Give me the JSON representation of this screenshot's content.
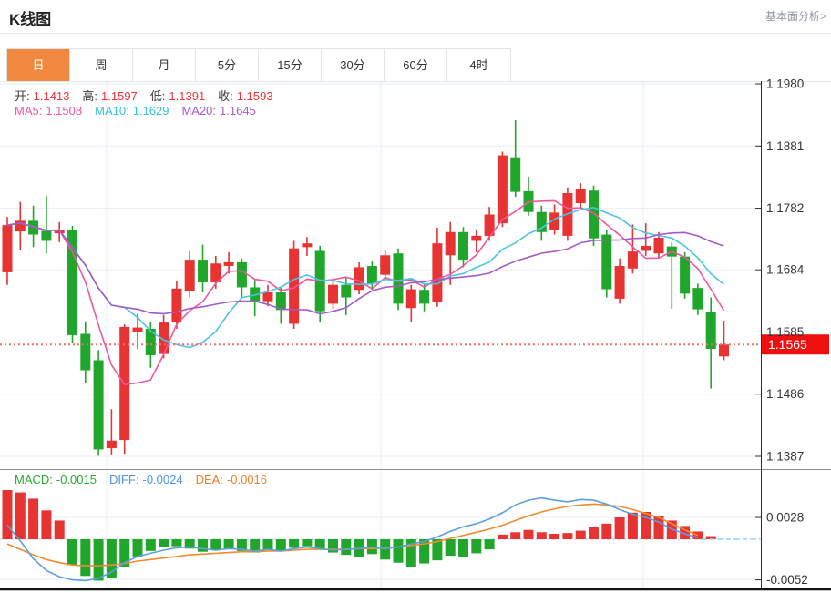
{
  "page": {
    "title": "K线图",
    "link": "基本面分析>"
  },
  "tabs": {
    "items": [
      {
        "name": "day",
        "label": "日",
        "active": true
      },
      {
        "name": "week",
        "label": "周",
        "active": false
      },
      {
        "name": "month",
        "label": "月",
        "active": false
      },
      {
        "name": "min5",
        "label": "5分",
        "active": false
      },
      {
        "name": "min15",
        "label": "15分",
        "active": false
      },
      {
        "name": "min30",
        "label": "30分",
        "active": false
      },
      {
        "name": "min60",
        "label": "60分",
        "active": false
      },
      {
        "name": "hour4",
        "label": "4时",
        "active": false
      }
    ]
  },
  "readout": {
    "ohlc": [
      {
        "name": "open",
        "label": "开:",
        "value": "1.1413"
      },
      {
        "name": "high",
        "label": "高:",
        "value": "1.1597"
      },
      {
        "name": "low",
        "label": "低:",
        "value": "1.1391"
      },
      {
        "name": "close",
        "label": "收:",
        "value": "1.1593"
      }
    ],
    "ma": [
      {
        "name": "ma5",
        "label": "MA5:",
        "value": "1.1508",
        "color": "#f0569e"
      },
      {
        "name": "ma10",
        "label": "MA10:",
        "value": "1.1629",
        "color": "#35c2dc"
      },
      {
        "name": "ma20",
        "label": "MA20:",
        "value": "1.1645",
        "color": "#a55ad2"
      }
    ],
    "macd": [
      {
        "name": "macd",
        "label": "MACD:",
        "value": "-0.0015",
        "color": "#27a830"
      },
      {
        "name": "diff",
        "label": "DIFF:",
        "value": "-0.0024",
        "color": "#4f94e8"
      },
      {
        "name": "dea",
        "label": "DEA:",
        "value": "-0.0016",
        "color": "#f07f28"
      }
    ]
  },
  "price_axis": {
    "labels": [
      "1.1980",
      "1.1881",
      "1.1782",
      "1.1684",
      "1.1585",
      "1.1486",
      "1.1387"
    ],
    "current": "1.1565"
  },
  "macd_axis": {
    "labels": [
      "0.0028",
      "-0.0052"
    ]
  },
  "colors": {
    "up": "#e83333",
    "down": "#21a62c",
    "ma5": "#f0569e",
    "ma10": "#4cc5e0",
    "ma20": "#a45bc8",
    "diff_line": "#5b9fe0",
    "dea_line": "#f28a30",
    "grid": "#e7eef5",
    "vgrid": "#e7eef5",
    "axis": "#2f2f2f",
    "separator": "#8a8f94",
    "bottom_line": "#111111",
    "dotted_price": "#f56c6c",
    "tag_bg": "#ee1010",
    "tag_text": "#ffffff",
    "zero_dash": "#c6d0da",
    "tail_dash": "#8ed7f0",
    "label_text": "#333333",
    "ohlc_label": "#3c3c3c",
    "ohlc_value": "#f03333",
    "tab_active": "#f08840"
  },
  "chart_data": {
    "type": "candlestick+macd",
    "title": "K线图 daily candlestick chart with MACD sub-panel",
    "main_panel": {
      "ylim": [
        1.1387,
        1.198
      ],
      "y_ticks": [
        1.198,
        1.1881,
        1.1782,
        1.1684,
        1.1585,
        1.1486,
        1.1387
      ],
      "current_price": 1.1565,
      "ma_periods": [
        5,
        10,
        20
      ],
      "candles_ohlc": [
        [
          1.168,
          1.1768,
          1.166,
          1.1755
        ],
        [
          1.1745,
          1.1792,
          1.1716,
          1.1762
        ],
        [
          1.1762,
          1.1786,
          1.172,
          1.174
        ],
        [
          1.1746,
          1.1802,
          1.171,
          1.173
        ],
        [
          1.1742,
          1.176,
          1.1728,
          1.1748
        ],
        [
          1.1748,
          1.1754,
          1.1568,
          1.158
        ],
        [
          1.1582,
          1.1602,
          1.1504,
          1.1524
        ],
        [
          1.154,
          1.1556,
          1.1388,
          1.1398
        ],
        [
          1.14,
          1.1462,
          1.139,
          1.1412
        ],
        [
          1.1413,
          1.1597,
          1.1391,
          1.1593
        ],
        [
          1.1585,
          1.1614,
          1.1558,
          1.1592
        ],
        [
          1.159,
          1.16,
          1.1528,
          1.1548
        ],
        [
          1.155,
          1.1612,
          1.1543,
          1.16
        ],
        [
          1.16,
          1.1666,
          1.159,
          1.1654
        ],
        [
          1.165,
          1.1714,
          1.164,
          1.17
        ],
        [
          1.17,
          1.1724,
          1.1648,
          1.1664
        ],
        [
          1.1664,
          1.1706,
          1.1654,
          1.1694
        ],
        [
          1.169,
          1.1712,
          1.1678,
          1.1696
        ],
        [
          1.1696,
          1.1702,
          1.164,
          1.1656
        ],
        [
          1.1656,
          1.1668,
          1.161,
          1.1634
        ],
        [
          1.1634,
          1.166,
          1.1626,
          1.1648
        ],
        [
          1.1648,
          1.1656,
          1.1598,
          1.162
        ],
        [
          1.1598,
          1.173,
          1.159,
          1.1718
        ],
        [
          1.172,
          1.1736,
          1.1706,
          1.1726
        ],
        [
          1.1714,
          1.1722,
          1.16,
          1.1618
        ],
        [
          1.163,
          1.1668,
          1.1622,
          1.166
        ],
        [
          1.166,
          1.1672,
          1.1612,
          1.164
        ],
        [
          1.1652,
          1.1696,
          1.1645,
          1.1688
        ],
        [
          1.169,
          1.1698,
          1.1652,
          1.1662
        ],
        [
          1.1676,
          1.1716,
          1.1668,
          1.1707
        ],
        [
          1.171,
          1.1718,
          1.162,
          1.163
        ],
        [
          1.1623,
          1.166,
          1.1601,
          1.1653
        ],
        [
          1.1652,
          1.1662,
          1.1618,
          1.163
        ],
        [
          1.1632,
          1.1751,
          1.1625,
          1.1726
        ],
        [
          1.1707,
          1.176,
          1.166,
          1.1744
        ],
        [
          1.1744,
          1.1752,
          1.1688,
          1.17
        ],
        [
          1.173,
          1.1748,
          1.1712,
          1.1738
        ],
        [
          1.1738,
          1.1784,
          1.173,
          1.1772
        ],
        [
          1.1758,
          1.1872,
          1.1752,
          1.1866
        ],
        [
          1.1863,
          1.1922,
          1.18,
          1.1808
        ],
        [
          1.1809,
          1.1832,
          1.177,
          1.1776
        ],
        [
          1.1776,
          1.1786,
          1.173,
          1.1744
        ],
        [
          1.1748,
          1.1788,
          1.174,
          1.1775
        ],
        [
          1.1738,
          1.1815,
          1.173,
          1.1806
        ],
        [
          1.179,
          1.1822,
          1.1782,
          1.1812
        ],
        [
          1.181,
          1.1818,
          1.1722,
          1.1734
        ],
        [
          1.174,
          1.1748,
          1.164,
          1.1653
        ],
        [
          1.1638,
          1.1702,
          1.163,
          1.169
        ],
        [
          1.1686,
          1.1756,
          1.1678,
          1.1713
        ],
        [
          1.1714,
          1.1758,
          1.1706,
          1.1722
        ],
        [
          1.171,
          1.1744,
          1.1702,
          1.1735
        ],
        [
          1.1721,
          1.1728,
          1.1622,
          1.1705
        ],
        [
          1.1705,
          1.1712,
          1.1638,
          1.1646
        ],
        [
          1.1655,
          1.1662,
          1.1612,
          1.1621
        ],
        [
          1.1617,
          1.164,
          1.1495,
          1.1558
        ],
        [
          1.1546,
          1.1603,
          1.154,
          1.1565
        ]
      ]
    },
    "macd_panel": {
      "ylim": [
        -0.0052,
        0.0028
      ],
      "y_ticks": [
        0.0028,
        -0.0052
      ],
      "histogram": [
        0.0063,
        0.006,
        0.0052,
        0.0037,
        0.0024,
        -0.0033,
        -0.0047,
        -0.0053,
        -0.0049,
        -0.0035,
        -0.0022,
        -0.0015,
        -0.001,
        -0.0009,
        -0.0012,
        -0.0016,
        -0.0014,
        -0.0012,
        -0.0015,
        -0.0017,
        -0.0013,
        -0.0015,
        -0.0011,
        -0.0009,
        -0.0013,
        -0.0017,
        -0.002,
        -0.0023,
        -0.0019,
        -0.0026,
        -0.003,
        -0.0035,
        -0.0031,
        -0.0027,
        -0.0021,
        -0.0023,
        -0.0018,
        -0.0013,
        0.0006,
        0.0009,
        0.0012,
        0.0009,
        0.0007,
        0.0008,
        0.0011,
        0.0016,
        0.002,
        0.0028,
        0.0034,
        0.0035,
        0.003,
        0.0024,
        0.0017,
        0.001,
        0.0004,
        0.0001
      ],
      "diff": [
        0.0018,
        -0.0002,
        -0.0025,
        -0.004,
        -0.0048,
        -0.0052,
        -0.0053,
        -0.005,
        -0.0042,
        -0.003,
        -0.0022,
        -0.0018,
        -0.0014,
        -0.0011,
        -0.001,
        -0.0012,
        -0.0014,
        -0.0012,
        -0.0013,
        -0.0015,
        -0.0013,
        -0.0015,
        -0.0012,
        -0.001,
        -0.0012,
        -0.0014,
        -0.0013,
        -0.0012,
        -0.001,
        -0.0012,
        -0.001,
        -0.0006,
        -0.0003,
        0.0003,
        0.001,
        0.0016,
        0.002,
        0.0026,
        0.0034,
        0.0044,
        0.005,
        0.0053,
        0.005,
        0.0048,
        0.0051,
        0.005,
        0.0045,
        0.0038,
        0.0032,
        0.0028,
        0.0022,
        0.0013,
        0.0007,
        0.0002,
        0.0,
        0.0
      ],
      "dea": [
        -0.0006,
        -0.0013,
        -0.002,
        -0.0026,
        -0.003,
        -0.0033,
        -0.0034,
        -0.0034,
        -0.0033,
        -0.0031,
        -0.0028,
        -0.0026,
        -0.0024,
        -0.0022,
        -0.002,
        -0.0019,
        -0.0018,
        -0.0017,
        -0.0016,
        -0.0016,
        -0.0015,
        -0.0015,
        -0.0014,
        -0.0013,
        -0.0013,
        -0.0013,
        -0.0013,
        -0.0012,
        -0.0012,
        -0.0011,
        -0.001,
        -0.0008,
        -0.0006,
        -0.0003,
        0.0001,
        0.0005,
        0.0009,
        0.0013,
        0.0018,
        0.0024,
        0.003,
        0.0035,
        0.0039,
        0.0042,
        0.0044,
        0.0045,
        0.0044,
        0.0042,
        0.0038,
        0.0033,
        0.0028,
        0.002,
        0.0012,
        0.0005,
        0.0001,
        0.0
      ]
    }
  }
}
